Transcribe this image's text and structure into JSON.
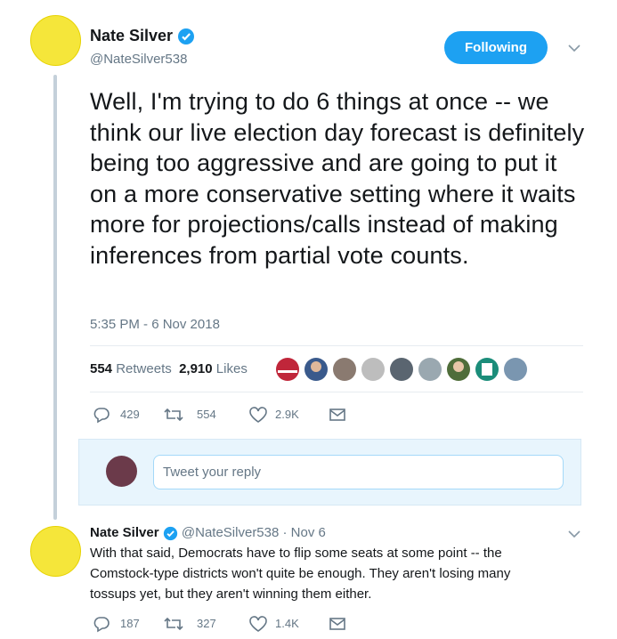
{
  "main_tweet": {
    "name": "Nate Silver",
    "handle": "@NateSilver538",
    "follow_button": "Following",
    "text": "Well, I'm trying to do 6 things at once -- we think our live election day forecast is definitely being too aggressive and are going to put it on a more conservative setting where it waits more for projections/calls instead of making inferences from partial vote counts.",
    "timestamp": "5:35 PM - 6 Nov 2018",
    "stats": {
      "retweets_count": "554",
      "retweets_label": "Retweets",
      "likes_count": "2,910",
      "likes_label": "Likes"
    },
    "actions": {
      "replies": "429",
      "retweets": "554",
      "likes": "2.9K"
    }
  },
  "reply_box": {
    "placeholder": "Tweet your reply"
  },
  "reply_tweet": {
    "name": "Nate Silver",
    "handle": "@NateSilver538",
    "date": "· Nov 6",
    "text": "With that said, Democrats have to flip some seats at some point -- the Comstock-type districts won't quite be enough. They aren't losing many tossups yet, but they aren't winning them either.",
    "actions": {
      "replies": "187",
      "retweets": "327",
      "likes": "1.4K"
    }
  }
}
